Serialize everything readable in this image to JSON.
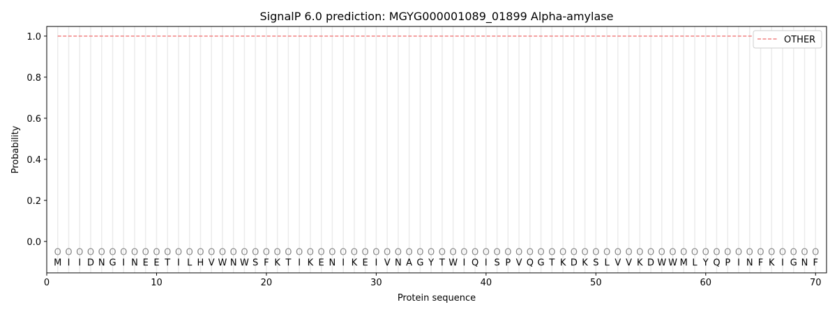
{
  "chart_data": {
    "type": "line",
    "title": "SignalP 6.0 prediction: MGYG000001089_01899 Alpha-amylase",
    "xlabel": "Protein sequence",
    "ylabel": "Probability",
    "xlim": [
      0,
      71
    ],
    "ylim": [
      -0.153,
      1.047
    ],
    "xticks": [
      0,
      10,
      20,
      30,
      40,
      50,
      60,
      70
    ],
    "yticks": [
      0.0,
      0.2,
      0.4,
      0.6,
      0.8,
      1.0
    ],
    "ytick_labels": [
      "0.0",
      "0.2",
      "0.4",
      "0.6",
      "0.8",
      "1.0"
    ],
    "grid": "vertical lines at each residue",
    "legend_placement": "top-right",
    "sequence": [
      "M",
      "I",
      "I",
      "D",
      "N",
      "G",
      "I",
      "N",
      "E",
      "E",
      "T",
      "I",
      "L",
      "H",
      "V",
      "W",
      "N",
      "W",
      "S",
      "F",
      "K",
      "T",
      "I",
      "K",
      "E",
      "N",
      "I",
      "K",
      "E",
      "I",
      "V",
      "N",
      "A",
      "G",
      "Y",
      "T",
      "W",
      "I",
      "Q",
      "I",
      "S",
      "P",
      "V",
      "Q",
      "G",
      "T",
      "K",
      "D",
      "K",
      "S",
      "L",
      "V",
      "V",
      "K",
      "D",
      "W",
      "W",
      "M",
      "L",
      "Y",
      "Q",
      "P",
      "I",
      "N",
      "F",
      "K",
      "I",
      "G",
      "N",
      "F"
    ],
    "region_label": "O",
    "region_label_y": -0.05,
    "series": [
      {
        "name": "OTHER",
        "color": "#f08080",
        "style": "dashed",
        "x_start": 1,
        "x_end": 70,
        "value": 1.0
      }
    ]
  }
}
